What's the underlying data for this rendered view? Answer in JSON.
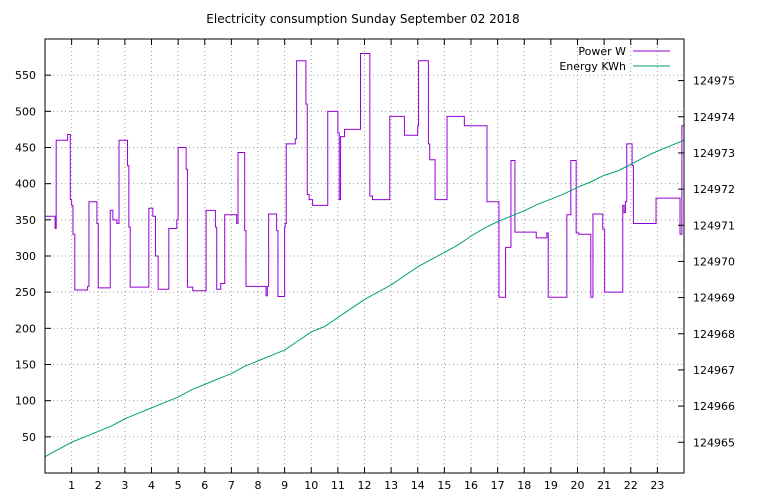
{
  "chart_data": {
    "type": "line",
    "title": "Electricity consumption Sunday September 02 2018",
    "xlabel": "",
    "ylabel": "",
    "grid": true,
    "legend_position": "top-right",
    "x_range": [
      0,
      24
    ],
    "y_left_range": [
      0,
      600
    ],
    "y_right_range": [
      124964.15,
      124976.15
    ],
    "x_ticks": [
      1,
      2,
      3,
      4,
      5,
      6,
      7,
      8,
      9,
      10,
      11,
      12,
      13,
      14,
      15,
      16,
      17,
      18,
      19,
      20,
      21,
      22,
      23
    ],
    "x_tick_labels": [
      "1",
      "2",
      "3",
      "4",
      "5",
      "6",
      "7",
      "8",
      "9",
      "10",
      "11",
      "12",
      "13",
      "14",
      "15",
      "16",
      "17",
      "18",
      "19",
      "20",
      "21",
      "22",
      "23"
    ],
    "y_left_ticks": [
      50,
      100,
      150,
      200,
      250,
      300,
      350,
      400,
      450,
      500,
      550
    ],
    "y_left_tick_labels": [
      "50",
      "100",
      "150",
      "200",
      "250",
      "300",
      "350",
      "400",
      "450",
      "500",
      "550"
    ],
    "y_right_ticks": [
      124965,
      124966,
      124967,
      124968,
      124969,
      124970,
      124971,
      124972,
      124973,
      124974,
      124975
    ],
    "y_right_tick_labels": [
      "124965",
      "124966",
      "124967",
      "124968",
      "124969",
      "124970",
      "124971",
      "124972",
      "124973",
      "124974",
      "124975"
    ],
    "series": [
      {
        "name": "Power W",
        "axis": "left",
        "color": "#9400d3",
        "step": true,
        "points": [
          [
            0.0,
            355
          ],
          [
            0.38,
            355
          ],
          [
            0.38,
            338
          ],
          [
            0.42,
            338
          ],
          [
            0.42,
            460
          ],
          [
            0.85,
            460
          ],
          [
            0.85,
            468
          ],
          [
            0.95,
            468
          ],
          [
            0.95,
            378
          ],
          [
            1.0,
            378
          ],
          [
            1.0,
            370
          ],
          [
            1.05,
            370
          ],
          [
            1.05,
            330
          ],
          [
            1.12,
            330
          ],
          [
            1.12,
            253
          ],
          [
            1.6,
            253
          ],
          [
            1.6,
            258
          ],
          [
            1.65,
            258
          ],
          [
            1.65,
            375
          ],
          [
            1.95,
            375
          ],
          [
            1.95,
            345
          ],
          [
            2.0,
            345
          ],
          [
            2.0,
            256
          ],
          [
            2.45,
            256
          ],
          [
            2.45,
            363
          ],
          [
            2.55,
            363
          ],
          [
            2.55,
            350
          ],
          [
            2.7,
            350
          ],
          [
            2.7,
            345
          ],
          [
            2.78,
            345
          ],
          [
            2.78,
            460
          ],
          [
            3.1,
            460
          ],
          [
            3.1,
            425
          ],
          [
            3.15,
            425
          ],
          [
            3.15,
            340
          ],
          [
            3.2,
            340
          ],
          [
            3.2,
            257
          ],
          [
            3.9,
            257
          ],
          [
            3.9,
            366
          ],
          [
            4.05,
            366
          ],
          [
            4.05,
            355
          ],
          [
            4.15,
            355
          ],
          [
            4.15,
            300
          ],
          [
            4.25,
            300
          ],
          [
            4.25,
            254
          ],
          [
            4.65,
            254
          ],
          [
            4.65,
            338
          ],
          [
            4.95,
            338
          ],
          [
            4.95,
            350
          ],
          [
            5.0,
            350
          ],
          [
            5.0,
            450
          ],
          [
            5.3,
            450
          ],
          [
            5.3,
            420
          ],
          [
            5.35,
            420
          ],
          [
            5.35,
            257
          ],
          [
            5.55,
            257
          ],
          [
            5.55,
            252
          ],
          [
            6.05,
            252
          ],
          [
            6.05,
            363
          ],
          [
            6.4,
            363
          ],
          [
            6.4,
            340
          ],
          [
            6.45,
            340
          ],
          [
            6.45,
            254
          ],
          [
            6.6,
            254
          ],
          [
            6.6,
            262
          ],
          [
            6.75,
            262
          ],
          [
            6.75,
            357
          ],
          [
            7.2,
            357
          ],
          [
            7.2,
            345
          ],
          [
            7.25,
            345
          ],
          [
            7.25,
            443
          ],
          [
            7.5,
            443
          ],
          [
            7.5,
            335
          ],
          [
            7.55,
            335
          ],
          [
            7.55,
            258
          ],
          [
            8.3,
            258
          ],
          [
            8.3,
            245
          ],
          [
            8.35,
            245
          ],
          [
            8.35,
            258
          ],
          [
            8.4,
            258
          ],
          [
            8.4,
            358
          ],
          [
            8.7,
            358
          ],
          [
            8.7,
            335
          ],
          [
            8.75,
            335
          ],
          [
            8.75,
            244
          ],
          [
            9.0,
            244
          ],
          [
            9.0,
            340
          ],
          [
            9.02,
            340
          ],
          [
            9.02,
            345
          ],
          [
            9.06,
            345
          ],
          [
            9.06,
            455
          ],
          [
            9.4,
            455
          ],
          [
            9.4,
            462
          ],
          [
            9.45,
            462
          ],
          [
            9.45,
            570
          ],
          [
            9.8,
            570
          ],
          [
            9.8,
            510
          ],
          [
            9.85,
            510
          ],
          [
            9.85,
            385
          ],
          [
            9.92,
            385
          ],
          [
            9.92,
            378
          ],
          [
            10.05,
            378
          ],
          [
            10.05,
            370
          ],
          [
            10.62,
            370
          ],
          [
            10.62,
            500
          ],
          [
            11.0,
            500
          ],
          [
            11.0,
            470
          ],
          [
            11.05,
            470
          ],
          [
            11.05,
            378
          ],
          [
            11.1,
            378
          ],
          [
            11.1,
            465
          ],
          [
            11.25,
            465
          ],
          [
            11.25,
            475
          ],
          [
            11.85,
            475
          ],
          [
            11.85,
            580
          ],
          [
            12.2,
            580
          ],
          [
            12.2,
            383
          ],
          [
            12.3,
            383
          ],
          [
            12.3,
            378
          ],
          [
            12.95,
            378
          ],
          [
            12.95,
            493
          ],
          [
            13.5,
            493
          ],
          [
            13.5,
            467
          ],
          [
            14.0,
            467
          ],
          [
            14.0,
            480
          ],
          [
            14.03,
            480
          ],
          [
            14.03,
            570
          ],
          [
            14.4,
            570
          ],
          [
            14.4,
            455
          ],
          [
            14.45,
            455
          ],
          [
            14.45,
            433
          ],
          [
            14.65,
            433
          ],
          [
            14.65,
            378
          ],
          [
            15.1,
            378
          ],
          [
            15.1,
            493
          ],
          [
            15.75,
            493
          ],
          [
            15.75,
            480
          ],
          [
            16.6,
            480
          ],
          [
            16.6,
            375
          ],
          [
            17.05,
            375
          ],
          [
            17.05,
            243
          ],
          [
            17.3,
            243
          ],
          [
            17.3,
            312
          ],
          [
            17.5,
            312
          ],
          [
            17.5,
            432
          ],
          [
            17.65,
            432
          ],
          [
            17.65,
            333
          ],
          [
            18.45,
            333
          ],
          [
            18.45,
            325
          ],
          [
            18.85,
            325
          ],
          [
            18.85,
            332
          ],
          [
            18.9,
            332
          ],
          [
            18.9,
            243
          ],
          [
            19.6,
            243
          ],
          [
            19.6,
            357
          ],
          [
            19.75,
            357
          ],
          [
            19.75,
            432
          ],
          [
            19.95,
            432
          ],
          [
            19.95,
            332
          ],
          [
            20.05,
            332
          ],
          [
            20.05,
            330
          ],
          [
            20.5,
            330
          ],
          [
            20.5,
            243
          ],
          [
            20.58,
            243
          ],
          [
            20.58,
            358
          ],
          [
            20.95,
            358
          ],
          [
            20.95,
            337
          ],
          [
            21.02,
            337
          ],
          [
            21.02,
            250
          ],
          [
            21.7,
            250
          ],
          [
            21.7,
            370
          ],
          [
            21.75,
            370
          ],
          [
            21.75,
            360
          ],
          [
            21.8,
            360
          ],
          [
            21.8,
            375
          ],
          [
            21.85,
            375
          ],
          [
            21.85,
            455
          ],
          [
            22.05,
            455
          ],
          [
            22.05,
            425
          ],
          [
            22.1,
            425
          ],
          [
            22.1,
            345
          ],
          [
            22.95,
            345
          ],
          [
            22.95,
            380
          ],
          [
            23.85,
            380
          ],
          [
            23.85,
            330
          ],
          [
            23.92,
            330
          ],
          [
            23.92,
            480
          ],
          [
            24.0,
            480
          ]
        ]
      },
      {
        "name": "Energy KWh",
        "axis": "right",
        "color": "#009e73",
        "step": false,
        "points": [
          [
            0.0,
            124964.6
          ],
          [
            0.5,
            124964.8
          ],
          [
            1.0,
            124965.0
          ],
          [
            1.5,
            124965.15
          ],
          [
            2.0,
            124965.3
          ],
          [
            2.5,
            124965.45
          ],
          [
            3.0,
            124965.65
          ],
          [
            3.5,
            124965.8
          ],
          [
            4.0,
            124965.95
          ],
          [
            4.5,
            124966.1
          ],
          [
            5.0,
            124966.25
          ],
          [
            5.5,
            124966.45
          ],
          [
            6.0,
            124966.6
          ],
          [
            6.5,
            124966.75
          ],
          [
            7.0,
            124966.9
          ],
          [
            7.5,
            124967.1
          ],
          [
            8.0,
            124967.25
          ],
          [
            8.5,
            124967.4
          ],
          [
            9.0,
            124967.55
          ],
          [
            9.5,
            124967.8
          ],
          [
            10.0,
            124968.05
          ],
          [
            10.5,
            124968.2
          ],
          [
            11.0,
            124968.45
          ],
          [
            11.5,
            124968.7
          ],
          [
            12.0,
            124968.95
          ],
          [
            12.5,
            124969.15
          ],
          [
            13.0,
            124969.35
          ],
          [
            13.5,
            124969.6
          ],
          [
            14.0,
            124969.85
          ],
          [
            14.5,
            124970.05
          ],
          [
            15.0,
            124970.25
          ],
          [
            15.5,
            124970.45
          ],
          [
            16.0,
            124970.7
          ],
          [
            16.5,
            124970.92
          ],
          [
            17.0,
            124971.1
          ],
          [
            17.5,
            124971.25
          ],
          [
            18.0,
            124971.4
          ],
          [
            18.5,
            124971.58
          ],
          [
            19.0,
            124971.72
          ],
          [
            19.5,
            124971.87
          ],
          [
            20.0,
            124972.05
          ],
          [
            20.5,
            124972.2
          ],
          [
            21.0,
            124972.38
          ],
          [
            21.5,
            124972.5
          ],
          [
            22.0,
            124972.68
          ],
          [
            22.5,
            124972.88
          ],
          [
            23.0,
            124973.05
          ],
          [
            23.5,
            124973.2
          ],
          [
            24.0,
            124973.35
          ]
        ]
      }
    ]
  }
}
